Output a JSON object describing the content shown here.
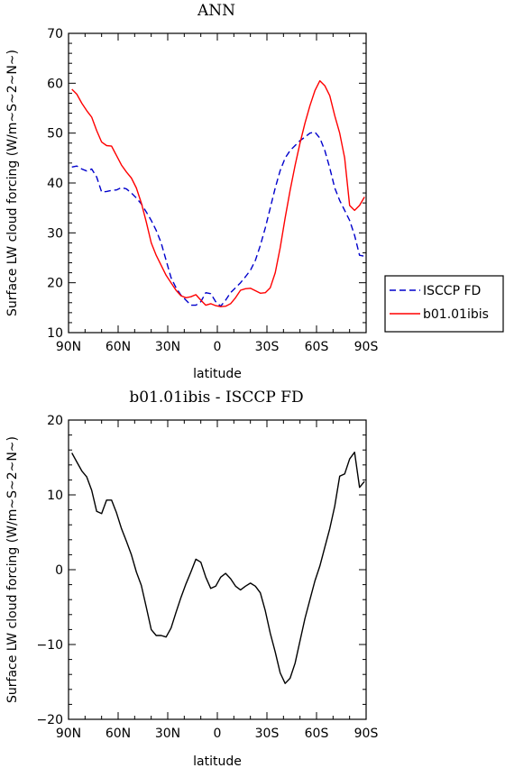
{
  "chart_data": [
    {
      "type": "line",
      "title": "ANN",
      "xlabel": "latitude",
      "ylabel": "Surface LW cloud forcing (W/m~S~2~N~)",
      "xlim": [
        -90,
        90
      ],
      "ylim": [
        10,
        70
      ],
      "xticks": [
        -90,
        -60,
        -30,
        0,
        30,
        60,
        90
      ],
      "xtick_labels": [
        "90N",
        "60N",
        "30N",
        "0",
        "30S",
        "60S",
        "90S"
      ],
      "yticks": [
        10,
        20,
        30,
        40,
        50,
        60,
        70
      ],
      "ytick_labels": [
        "10",
        "20",
        "30",
        "40",
        "50",
        "60",
        "70"
      ],
      "legend_position": "outside-right",
      "series": [
        {
          "name": "ISCCP FD",
          "color": "#0000cc",
          "dash": "dashed",
          "x": [
            -88,
            -85,
            -82,
            -79,
            -76,
            -73,
            -70,
            -67,
            -64,
            -61,
            -58,
            -55,
            -52,
            -49,
            -46,
            -43,
            -40,
            -37,
            -34,
            -31,
            -28,
            -25,
            -22,
            -19,
            -16,
            -13,
            -10,
            -7,
            -4,
            -1,
            2,
            5,
            8,
            11,
            14,
            17,
            20,
            23,
            26,
            29,
            32,
            35,
            38,
            41,
            44,
            47,
            50,
            53,
            56,
            59,
            62,
            65,
            68,
            71,
            74,
            77,
            80,
            83,
            86,
            89
          ],
          "y": [
            43.2,
            43.4,
            42.8,
            42.4,
            42.8,
            41.2,
            38.2,
            38.3,
            38.5,
            38.6,
            39.1,
            38.8,
            38.0,
            37.0,
            35.8,
            34.2,
            32.5,
            30.5,
            28.0,
            24.5,
            21.0,
            19.0,
            17.5,
            16.5,
            15.5,
            15.5,
            16.2,
            18.0,
            17.8,
            16.2,
            15.3,
            16.5,
            18.0,
            19.0,
            20.0,
            21.2,
            22.5,
            24.5,
            27.5,
            31.0,
            35.0,
            39.0,
            42.5,
            45.0,
            46.5,
            47.5,
            48.5,
            49.2,
            50.0,
            50.2,
            49.0,
            46.5,
            43.0,
            39.0,
            36.5,
            34.5,
            32.5,
            29.5,
            25.5,
            25.3
          ]
        },
        {
          "name": "b01.01ibis",
          "color": "#ff0000",
          "dash": "solid",
          "x": [
            -88,
            -85,
            -82,
            -79,
            -76,
            -73,
            -70,
            -67,
            -64,
            -61,
            -58,
            -55,
            -52,
            -49,
            -46,
            -43,
            -40,
            -37,
            -34,
            -31,
            -28,
            -25,
            -22,
            -19,
            -16,
            -13,
            -10,
            -7,
            -4,
            -1,
            2,
            5,
            8,
            11,
            14,
            17,
            20,
            23,
            26,
            29,
            32,
            35,
            38,
            41,
            44,
            47,
            50,
            53,
            56,
            59,
            62,
            65,
            68,
            71,
            74,
            77,
            80,
            83,
            86,
            89
          ],
          "y": [
            58.8,
            57.8,
            56.0,
            54.5,
            53.2,
            50.5,
            48.2,
            47.5,
            47.4,
            45.5,
            43.6,
            42.2,
            41.0,
            39.0,
            36.0,
            32.2,
            28.0,
            25.5,
            23.5,
            21.5,
            20.0,
            18.5,
            17.4,
            17.0,
            17.2,
            17.6,
            16.5,
            15.5,
            15.8,
            15.4,
            15.2,
            15.3,
            15.8,
            17.0,
            18.5,
            18.8,
            18.9,
            18.4,
            17.9,
            18.0,
            19.0,
            22.0,
            27.0,
            33.0,
            38.5,
            43.5,
            48.0,
            52.0,
            55.5,
            58.5,
            60.5,
            59.5,
            57.5,
            53.5,
            50.0,
            45.0,
            35.5,
            34.5,
            35.5,
            37.2
          ]
        }
      ]
    },
    {
      "type": "line",
      "title": "b01.01ibis - ISCCP FD",
      "xlabel": "latitude",
      "ylabel": "Surface LW cloud forcing (W/m~S~2~N~)",
      "xlim": [
        -90,
        90
      ],
      "ylim": [
        -20,
        20
      ],
      "xticks": [
        -90,
        -60,
        -30,
        0,
        30,
        60,
        90
      ],
      "xtick_labels": [
        "90N",
        "60N",
        "30N",
        "0",
        "30S",
        "60S",
        "90S"
      ],
      "yticks": [
        -20,
        -10,
        0,
        10,
        20
      ],
      "ytick_labels": [
        "−20",
        "−10",
        "0",
        "10",
        "20"
      ],
      "series": [
        {
          "color": "#000000",
          "dash": "solid",
          "x": [
            -88,
            -85,
            -82,
            -79,
            -76,
            -73,
            -70,
            -67,
            -64,
            -61,
            -58,
            -55,
            -52,
            -49,
            -46,
            -43,
            -40,
            -37,
            -34,
            -31,
            -28,
            -25,
            -22,
            -19,
            -16,
            -13,
            -10,
            -7,
            -4,
            -1,
            2,
            5,
            8,
            11,
            14,
            17,
            20,
            23,
            26,
            29,
            32,
            35,
            38,
            41,
            44,
            47,
            50,
            53,
            56,
            59,
            62,
            65,
            68,
            71,
            74,
            77,
            80,
            83,
            86,
            89
          ],
          "y": [
            15.6,
            14.4,
            13.2,
            12.4,
            10.6,
            7.8,
            7.5,
            9.3,
            9.3,
            7.6,
            5.5,
            3.8,
            2.0,
            -0.3,
            -2.1,
            -5.0,
            -8.0,
            -8.8,
            -8.8,
            -9.0,
            -7.8,
            -5.7,
            -3.7,
            -1.9,
            -0.3,
            1.4,
            1.0,
            -1.0,
            -2.5,
            -2.2,
            -1.0,
            -0.5,
            -1.2,
            -2.2,
            -2.7,
            -2.2,
            -1.8,
            -2.2,
            -3.1,
            -5.5,
            -8.5,
            -11.0,
            -13.8,
            -15.2,
            -14.5,
            -12.5,
            -9.5,
            -6.5,
            -4.0,
            -1.5,
            0.5,
            3.0,
            5.5,
            8.5,
            12.5,
            12.8,
            14.8,
            15.7,
            11.0,
            11.8
          ]
        }
      ]
    }
  ]
}
